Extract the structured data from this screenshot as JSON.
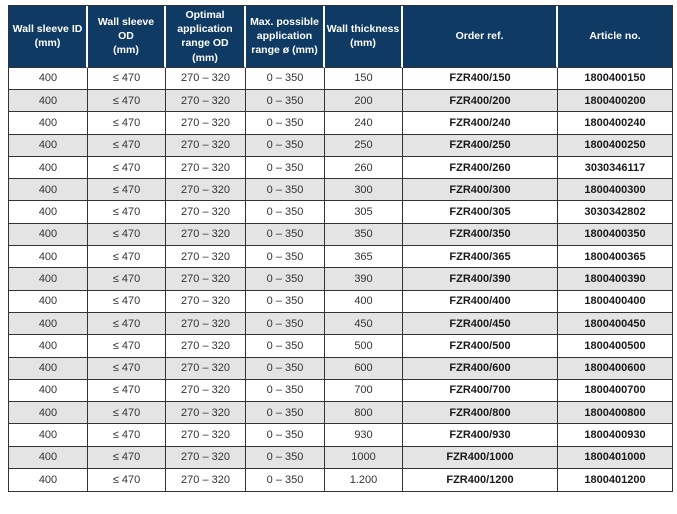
{
  "colors": {
    "header_background": "#0e3a63",
    "header_text": "#ffffff",
    "row_background": "#ffffff",
    "row_stripe": "#e4e4e4",
    "grid_border": "#333333",
    "body_text": "#333333",
    "emphasis_text": "#1a1a1a"
  },
  "table": {
    "column_keys": [
      "sleeve_id",
      "sleeve_od",
      "optimal_range",
      "max_range",
      "thickness",
      "order_ref",
      "article_no"
    ],
    "headers": [
      {
        "label": "Wall sleeve ID\n(mm)"
      },
      {
        "label": "Wall sleeve OD\n(mm)"
      },
      {
        "label": "Optimal\napplication\nrange OD\n(mm)"
      },
      {
        "label": "Max. possible\napplication\nrange ø (mm)"
      },
      {
        "label": "Wall thickness\n(mm)"
      },
      {
        "label": "Order ref."
      },
      {
        "label": "Article no."
      }
    ],
    "rows": [
      {
        "sleeve_id": "400",
        "sleeve_od": "≤ 470",
        "optimal_range": "270 – 320",
        "max_range": "0 – 350",
        "thickness": "150",
        "order_ref": "FZR400/150",
        "article_no": "1800400150"
      },
      {
        "sleeve_id": "400",
        "sleeve_od": "≤ 470",
        "optimal_range": "270 – 320",
        "max_range": "0 – 350",
        "thickness": "200",
        "order_ref": "FZR400/200",
        "article_no": "1800400200"
      },
      {
        "sleeve_id": "400",
        "sleeve_od": "≤ 470",
        "optimal_range": "270 – 320",
        "max_range": "0 – 350",
        "thickness": "240",
        "order_ref": "FZR400/240",
        "article_no": "1800400240"
      },
      {
        "sleeve_id": "400",
        "sleeve_od": "≤ 470",
        "optimal_range": "270 – 320",
        "max_range": "0 – 350",
        "thickness": "250",
        "order_ref": "FZR400/250",
        "article_no": "1800400250"
      },
      {
        "sleeve_id": "400",
        "sleeve_od": "≤ 470",
        "optimal_range": "270 – 320",
        "max_range": "0 – 350",
        "thickness": "260",
        "order_ref": "FZR400/260",
        "article_no": "3030346117"
      },
      {
        "sleeve_id": "400",
        "sleeve_od": "≤ 470",
        "optimal_range": "270 – 320",
        "max_range": "0 – 350",
        "thickness": "300",
        "order_ref": "FZR400/300",
        "article_no": "1800400300"
      },
      {
        "sleeve_id": "400",
        "sleeve_od": "≤ 470",
        "optimal_range": "270 – 320",
        "max_range": "0 – 350",
        "thickness": "305",
        "order_ref": "FZR400/305",
        "article_no": "3030342802"
      },
      {
        "sleeve_id": "400",
        "sleeve_od": "≤ 470",
        "optimal_range": "270 – 320",
        "max_range": "0 – 350",
        "thickness": "350",
        "order_ref": "FZR400/350",
        "article_no": "1800400350"
      },
      {
        "sleeve_id": "400",
        "sleeve_od": "≤ 470",
        "optimal_range": "270 – 320",
        "max_range": "0 – 350",
        "thickness": "365",
        "order_ref": "FZR400/365",
        "article_no": "1800400365"
      },
      {
        "sleeve_id": "400",
        "sleeve_od": "≤ 470",
        "optimal_range": "270 – 320",
        "max_range": "0 – 350",
        "thickness": "390",
        "order_ref": "FZR400/390",
        "article_no": "1800400390"
      },
      {
        "sleeve_id": "400",
        "sleeve_od": "≤ 470",
        "optimal_range": "270 – 320",
        "max_range": "0 – 350",
        "thickness": "400",
        "order_ref": "FZR400/400",
        "article_no": "1800400400"
      },
      {
        "sleeve_id": "400",
        "sleeve_od": "≤ 470",
        "optimal_range": "270 – 320",
        "max_range": "0 – 350",
        "thickness": "450",
        "order_ref": "FZR400/450",
        "article_no": "1800400450"
      },
      {
        "sleeve_id": "400",
        "sleeve_od": "≤ 470",
        "optimal_range": "270 – 320",
        "max_range": "0 – 350",
        "thickness": "500",
        "order_ref": "FZR400/500",
        "article_no": "1800400500"
      },
      {
        "sleeve_id": "400",
        "sleeve_od": "≤ 470",
        "optimal_range": "270 – 320",
        "max_range": "0 – 350",
        "thickness": "600",
        "order_ref": "FZR400/600",
        "article_no": "1800400600"
      },
      {
        "sleeve_id": "400",
        "sleeve_od": "≤ 470",
        "optimal_range": "270 – 320",
        "max_range": "0 – 350",
        "thickness": "700",
        "order_ref": "FZR400/700",
        "article_no": "1800400700"
      },
      {
        "sleeve_id": "400",
        "sleeve_od": "≤ 470",
        "optimal_range": "270 – 320",
        "max_range": "0 – 350",
        "thickness": "800",
        "order_ref": "FZR400/800",
        "article_no": "1800400800"
      },
      {
        "sleeve_id": "400",
        "sleeve_od": "≤ 470",
        "optimal_range": "270 – 320",
        "max_range": "0 – 350",
        "thickness": "930",
        "order_ref": "FZR400/930",
        "article_no": "1800400930"
      },
      {
        "sleeve_id": "400",
        "sleeve_od": "≤ 470",
        "optimal_range": "270 – 320",
        "max_range": "0 – 350",
        "thickness": "1000",
        "order_ref": "FZR400/1000",
        "article_no": "1800401000"
      },
      {
        "sleeve_id": "400",
        "sleeve_od": "≤ 470",
        "optimal_range": "270 – 320",
        "max_range": "0 – 350",
        "thickness": "1.200",
        "order_ref": "FZR400/1200",
        "article_no": "1800401200"
      }
    ]
  }
}
